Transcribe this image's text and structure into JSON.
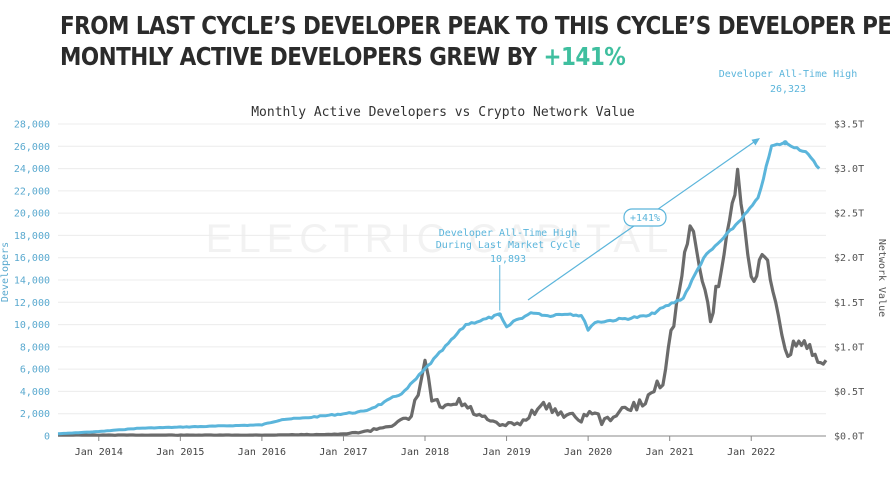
{
  "headline": {
    "line1": "FROM LAST CYCLE’S DEVELOPER PEAK TO THIS CYCLE’S DEVELOPER PEAK:",
    "line2_prefix": "MONTHLY ACTIVE DEVELOPERS GREW BY ",
    "line2_accent": "+141%"
  },
  "watermark": "ELECTRIC CAPITAL",
  "colors": {
    "developers": "#5bb5db",
    "network_value": "#6b6b6b",
    "headline_accent": "#3fbf9f",
    "axis_text": "#5aa9cf",
    "grid": "#ececec"
  },
  "chart_data": {
    "type": "line",
    "title": "Monthly Active Developers vs Crypto Network Value",
    "xlabel": "",
    "ylabel": "Developers",
    "y2label": "Network Value",
    "xlim": [
      "2013-07",
      "2022-12"
    ],
    "ylim": [
      0,
      28000
    ],
    "y2lim": [
      0,
      3.5
    ],
    "grid": "horizontal",
    "x_ticks": [
      "Jan 2014",
      "Jan 2015",
      "Jan 2016",
      "Jan 2017",
      "Jan 2018",
      "Jan 2019",
      "Jan 2020",
      "Jan 2021",
      "Jan 2022"
    ],
    "y_ticks": [
      "0",
      "2,000",
      "4,000",
      "6,000",
      "8,000",
      "10,000",
      "12,000",
      "14,000",
      "16,000",
      "18,000",
      "20,000",
      "22,000",
      "24,000",
      "26,000",
      "28,000"
    ],
    "y2_ticks": [
      "$0.0T",
      "$0.5T",
      "$1.0T",
      "$1.5T",
      "$2.0T",
      "$2.5T",
      "$3.0T",
      "$3.5T"
    ],
    "series": [
      {
        "name": "Developers",
        "axis": "left",
        "points": [
          [
            "2013-07",
            200
          ],
          [
            "2014-01",
            400
          ],
          [
            "2014-07",
            700
          ],
          [
            "2015-01",
            800
          ],
          [
            "2015-07",
            900
          ],
          [
            "2016-01",
            1000
          ],
          [
            "2016-04",
            1500
          ],
          [
            "2016-07",
            1600
          ],
          [
            "2017-01",
            2000
          ],
          [
            "2017-04",
            2200
          ],
          [
            "2017-07",
            3000
          ],
          [
            "2017-10",
            4000
          ],
          [
            "2018-01",
            6000
          ],
          [
            "2018-04",
            8000
          ],
          [
            "2018-07",
            10000
          ],
          [
            "2018-10",
            10500
          ],
          [
            "2018-12",
            10893
          ],
          [
            "2019-01",
            9700
          ],
          [
            "2019-02",
            10300
          ],
          [
            "2019-05",
            11100
          ],
          [
            "2019-07",
            10800
          ],
          [
            "2019-10",
            11000
          ],
          [
            "2019-12",
            10800
          ],
          [
            "2020-01",
            9600
          ],
          [
            "2020-02",
            10200
          ],
          [
            "2020-06",
            10500
          ],
          [
            "2020-10",
            10800
          ],
          [
            "2020-12",
            11500
          ],
          [
            "2021-03",
            12400
          ],
          [
            "2021-06",
            16000
          ],
          [
            "2021-09",
            17800
          ],
          [
            "2021-12",
            19800
          ],
          [
            "2022-02",
            21300
          ],
          [
            "2022-04",
            26000
          ],
          [
            "2022-06",
            26323
          ],
          [
            "2022-09",
            25500
          ],
          [
            "2022-11",
            24000
          ]
        ]
      },
      {
        "name": "Network Value",
        "axis": "right",
        "points": [
          [
            "2013-07",
            0.01
          ],
          [
            "2016-01",
            0.01
          ],
          [
            "2017-01",
            0.02
          ],
          [
            "2017-05",
            0.06
          ],
          [
            "2017-09",
            0.15
          ],
          [
            "2017-11",
            0.2
          ],
          [
            "2017-12",
            0.5
          ],
          [
            "2018-01",
            0.82
          ],
          [
            "2018-02",
            0.4
          ],
          [
            "2018-04",
            0.3
          ],
          [
            "2018-06",
            0.38
          ],
          [
            "2018-09",
            0.22
          ],
          [
            "2018-11",
            0.15
          ],
          [
            "2018-12",
            0.12
          ],
          [
            "2019-03",
            0.14
          ],
          [
            "2019-06",
            0.35
          ],
          [
            "2019-09",
            0.26
          ],
          [
            "2019-12",
            0.19
          ],
          [
            "2020-02",
            0.29
          ],
          [
            "2020-03",
            0.15
          ],
          [
            "2020-06",
            0.28
          ],
          [
            "2020-09",
            0.36
          ],
          [
            "2020-12",
            0.65
          ],
          [
            "2021-02",
            1.45
          ],
          [
            "2021-04",
            2.35
          ],
          [
            "2021-05",
            2.1
          ],
          [
            "2021-07",
            1.3
          ],
          [
            "2021-09",
            2.05
          ],
          [
            "2021-11",
            2.95
          ],
          [
            "2021-12",
            2.35
          ],
          [
            "2022-01",
            1.75
          ],
          [
            "2022-03",
            2.05
          ],
          [
            "2022-05",
            1.3
          ],
          [
            "2022-06",
            0.9
          ],
          [
            "2022-08",
            1.05
          ],
          [
            "2022-10",
            0.94
          ],
          [
            "2022-12",
            0.85
          ]
        ]
      }
    ],
    "annotations": {
      "last_cycle_label_1": "Developer All-Time High",
      "last_cycle_label_2": "During Last Market Cycle",
      "last_cycle_value": "10,893",
      "this_cycle_label": "Developer All-Time High",
      "this_cycle_value": "26,323",
      "growth_label": "+141%"
    }
  }
}
